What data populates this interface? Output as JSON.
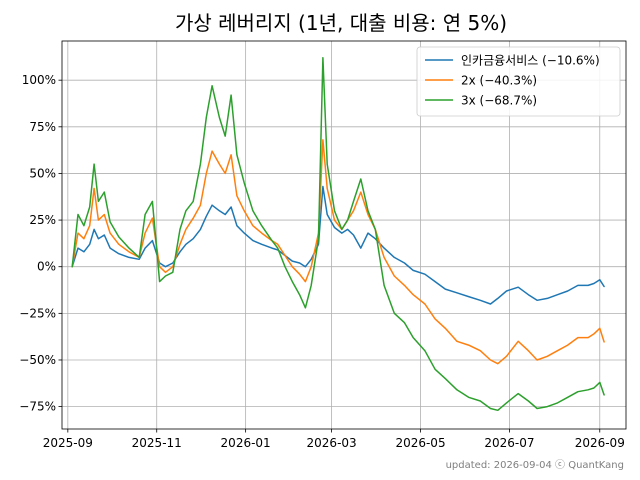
{
  "chart_data": {
    "type": "line",
    "title": "가상 레버리지 (1년, 대출 비용: 연 5%)",
    "xlabel": "",
    "ylabel": "",
    "x_ticks": [
      "2025-09",
      "2025-11",
      "2026-01",
      "2026-03",
      "2026-05",
      "2026-07",
      "2026-09"
    ],
    "y_ticks": [
      "-75%",
      "-50%",
      "-25%",
      "0%",
      "25%",
      "50%",
      "75%",
      "100%"
    ],
    "xlim": [
      "2025-08-28",
      "2026-09-19"
    ],
    "ylim": [
      -87,
      121
    ],
    "grid": true,
    "legend_position": "top-right",
    "footer": "updated: 2026-09-04 ⓒ QuantKang",
    "series": [
      {
        "name": "인카금융서비스 (−10.6%)",
        "color": "#1f77b4",
        "points": [
          [
            "2025-09-04",
            0
          ],
          [
            "2025-09-08",
            10
          ],
          [
            "2025-09-12",
            8
          ],
          [
            "2025-09-16",
            12
          ],
          [
            "2025-09-19",
            20
          ],
          [
            "2025-09-22",
            15
          ],
          [
            "2025-09-26",
            17
          ],
          [
            "2025-09-30",
            10
          ],
          [
            "2025-10-06",
            7
          ],
          [
            "2025-10-13",
            5
          ],
          [
            "2025-10-20",
            4
          ],
          [
            "2025-10-24",
            10
          ],
          [
            "2025-10-29",
            14
          ],
          [
            "2025-11-03",
            2
          ],
          [
            "2025-11-07",
            0
          ],
          [
            "2025-11-12",
            2
          ],
          [
            "2025-11-17",
            8
          ],
          [
            "2025-11-21",
            12
          ],
          [
            "2025-11-26",
            15
          ],
          [
            "2025-12-01",
            20
          ],
          [
            "2025-12-05",
            27
          ],
          [
            "2025-12-09",
            33
          ],
          [
            "2025-12-14",
            30
          ],
          [
            "2025-12-18",
            28
          ],
          [
            "2025-12-22",
            32
          ],
          [
            "2025-12-26",
            22
          ],
          [
            "2025-12-31",
            18
          ],
          [
            "2026-01-06",
            14
          ],
          [
            "2026-01-12",
            12
          ],
          [
            "2026-01-19",
            10
          ],
          [
            "2026-01-23",
            9
          ],
          [
            "2026-01-28",
            6
          ],
          [
            "2026-02-02",
            3
          ],
          [
            "2026-02-07",
            2
          ],
          [
            "2026-02-11",
            0
          ],
          [
            "2026-02-15",
            4
          ],
          [
            "2026-02-20",
            12
          ],
          [
            "2026-02-23",
            43
          ],
          [
            "2026-02-26",
            28
          ],
          [
            "2026-03-03",
            21
          ],
          [
            "2026-03-08",
            18
          ],
          [
            "2026-03-12",
            20
          ],
          [
            "2026-03-16",
            17
          ],
          [
            "2026-03-21",
            10
          ],
          [
            "2026-03-26",
            18
          ],
          [
            "2026-03-31",
            15
          ],
          [
            "2026-04-06",
            10
          ],
          [
            "2026-04-13",
            5
          ],
          [
            "2026-04-20",
            2
          ],
          [
            "2026-04-26",
            -2
          ],
          [
            "2026-05-04",
            -4
          ],
          [
            "2026-05-11",
            -8
          ],
          [
            "2026-05-18",
            -12
          ],
          [
            "2026-05-26",
            -14
          ],
          [
            "2026-06-03",
            -16
          ],
          [
            "2026-06-11",
            -18
          ],
          [
            "2026-06-18",
            -20
          ],
          [
            "2026-06-23",
            -17
          ],
          [
            "2026-06-29",
            -13
          ],
          [
            "2026-07-07",
            -11
          ],
          [
            "2026-07-14",
            -15
          ],
          [
            "2026-07-20",
            -18
          ],
          [
            "2026-07-27",
            -17
          ],
          [
            "2026-08-03",
            -15
          ],
          [
            "2026-08-10",
            -13
          ],
          [
            "2026-08-17",
            -10
          ],
          [
            "2026-08-24",
            -10
          ],
          [
            "2026-08-28",
            -9
          ],
          [
            "2026-09-01",
            -7
          ],
          [
            "2026-09-04",
            -10.6
          ]
        ]
      },
      {
        "name": "2x (−40.3%)",
        "color": "#ff7f0e",
        "points": [
          [
            "2025-09-04",
            0
          ],
          [
            "2025-09-08",
            18
          ],
          [
            "2025-09-12",
            15
          ],
          [
            "2025-09-16",
            22
          ],
          [
            "2025-09-19",
            42
          ],
          [
            "2025-09-22",
            25
          ],
          [
            "2025-09-26",
            28
          ],
          [
            "2025-09-30",
            18
          ],
          [
            "2025-10-06",
            12
          ],
          [
            "2025-10-13",
            8
          ],
          [
            "2025-10-20",
            5
          ],
          [
            "2025-10-24",
            18
          ],
          [
            "2025-10-29",
            26
          ],
          [
            "2025-11-03",
            0
          ],
          [
            "2025-11-07",
            -3
          ],
          [
            "2025-11-12",
            0
          ],
          [
            "2025-11-17",
            12
          ],
          [
            "2025-11-21",
            20
          ],
          [
            "2025-11-26",
            26
          ],
          [
            "2025-12-01",
            33
          ],
          [
            "2025-12-05",
            50
          ],
          [
            "2025-12-09",
            62
          ],
          [
            "2025-12-14",
            55
          ],
          [
            "2025-12-18",
            50
          ],
          [
            "2025-12-22",
            60
          ],
          [
            "2025-12-26",
            38
          ],
          [
            "2025-12-31",
            30
          ],
          [
            "2026-01-06",
            22
          ],
          [
            "2026-01-12",
            18
          ],
          [
            "2026-01-19",
            14
          ],
          [
            "2026-01-23",
            12
          ],
          [
            "2026-01-28",
            6
          ],
          [
            "2026-02-02",
            0
          ],
          [
            "2026-02-07",
            -4
          ],
          [
            "2026-02-11",
            -8
          ],
          [
            "2026-02-15",
            0
          ],
          [
            "2026-02-20",
            18
          ],
          [
            "2026-02-23",
            68
          ],
          [
            "2026-02-26",
            42
          ],
          [
            "2026-03-03",
            25
          ],
          [
            "2026-03-08",
            20
          ],
          [
            "2026-03-12",
            25
          ],
          [
            "2026-03-16",
            30
          ],
          [
            "2026-03-21",
            40
          ],
          [
            "2026-03-26",
            28
          ],
          [
            "2026-03-31",
            20
          ],
          [
            "2026-04-06",
            5
          ],
          [
            "2026-04-13",
            -5
          ],
          [
            "2026-04-20",
            -10
          ],
          [
            "2026-04-26",
            -15
          ],
          [
            "2026-05-04",
            -20
          ],
          [
            "2026-05-11",
            -28
          ],
          [
            "2026-05-18",
            -33
          ],
          [
            "2026-05-26",
            -40
          ],
          [
            "2026-06-03",
            -42
          ],
          [
            "2026-06-11",
            -45
          ],
          [
            "2026-06-18",
            -50
          ],
          [
            "2026-06-23",
            -52
          ],
          [
            "2026-06-29",
            -48
          ],
          [
            "2026-07-07",
            -40
          ],
          [
            "2026-07-14",
            -45
          ],
          [
            "2026-07-20",
            -50
          ],
          [
            "2026-07-27",
            -48
          ],
          [
            "2026-08-03",
            -45
          ],
          [
            "2026-08-10",
            -42
          ],
          [
            "2026-08-17",
            -38
          ],
          [
            "2026-08-24",
            -38
          ],
          [
            "2026-08-28",
            -36
          ],
          [
            "2026-09-01",
            -33
          ],
          [
            "2026-09-04",
            -40.3
          ]
        ]
      },
      {
        "name": "3x (−68.7%)",
        "color": "#2ca02c",
        "points": [
          [
            "2025-09-04",
            0
          ],
          [
            "2025-09-08",
            28
          ],
          [
            "2025-09-12",
            22
          ],
          [
            "2025-09-16",
            32
          ],
          [
            "2025-09-19",
            55
          ],
          [
            "2025-09-22",
            35
          ],
          [
            "2025-09-26",
            40
          ],
          [
            "2025-09-30",
            24
          ],
          [
            "2025-10-06",
            16
          ],
          [
            "2025-10-13",
            10
          ],
          [
            "2025-10-20",
            5
          ],
          [
            "2025-10-24",
            28
          ],
          [
            "2025-10-29",
            35
          ],
          [
            "2025-11-03",
            -8
          ],
          [
            "2025-11-07",
            -5
          ],
          [
            "2025-11-12",
            -3
          ],
          [
            "2025-11-17",
            20
          ],
          [
            "2025-11-21",
            30
          ],
          [
            "2025-11-26",
            35
          ],
          [
            "2025-12-01",
            55
          ],
          [
            "2025-12-05",
            80
          ],
          [
            "2025-12-09",
            97
          ],
          [
            "2025-12-14",
            80
          ],
          [
            "2025-12-18",
            70
          ],
          [
            "2025-12-22",
            92
          ],
          [
            "2025-12-26",
            60
          ],
          [
            "2025-12-31",
            45
          ],
          [
            "2026-01-06",
            30
          ],
          [
            "2026-01-12",
            22
          ],
          [
            "2026-01-19",
            14
          ],
          [
            "2026-01-23",
            10
          ],
          [
            "2026-01-28",
            0
          ],
          [
            "2026-02-02",
            -8
          ],
          [
            "2026-02-07",
            -15
          ],
          [
            "2026-02-11",
            -22
          ],
          [
            "2026-02-15",
            -10
          ],
          [
            "2026-02-20",
            15
          ],
          [
            "2026-02-23",
            112
          ],
          [
            "2026-02-26",
            55
          ],
          [
            "2026-03-03",
            30
          ],
          [
            "2026-03-08",
            20
          ],
          [
            "2026-03-12",
            25
          ],
          [
            "2026-03-16",
            35
          ],
          [
            "2026-03-21",
            47
          ],
          [
            "2026-03-26",
            30
          ],
          [
            "2026-03-31",
            20
          ],
          [
            "2026-04-06",
            -10
          ],
          [
            "2026-04-13",
            -25
          ],
          [
            "2026-04-20",
            -30
          ],
          [
            "2026-04-26",
            -38
          ],
          [
            "2026-05-04",
            -45
          ],
          [
            "2026-05-11",
            -55
          ],
          [
            "2026-05-18",
            -60
          ],
          [
            "2026-05-26",
            -66
          ],
          [
            "2026-06-03",
            -70
          ],
          [
            "2026-06-11",
            -72
          ],
          [
            "2026-06-18",
            -76
          ],
          [
            "2026-06-23",
            -77
          ],
          [
            "2026-06-29",
            -73
          ],
          [
            "2026-07-07",
            -68
          ],
          [
            "2026-07-14",
            -72
          ],
          [
            "2026-07-20",
            -76
          ],
          [
            "2026-07-27",
            -75
          ],
          [
            "2026-08-03",
            -73
          ],
          [
            "2026-08-10",
            -70
          ],
          [
            "2026-08-17",
            -67
          ],
          [
            "2026-08-24",
            -66
          ],
          [
            "2026-08-28",
            -65
          ],
          [
            "2026-09-01",
            -62
          ],
          [
            "2026-09-04",
            -68.7
          ]
        ]
      }
    ]
  }
}
